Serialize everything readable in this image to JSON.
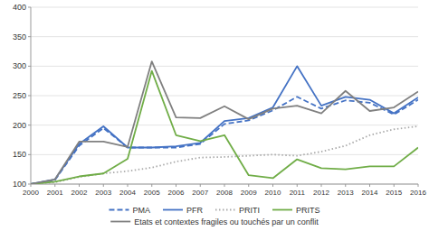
{
  "chart_data": {
    "type": "line",
    "x": [
      2000,
      2001,
      2002,
      2003,
      2004,
      2005,
      2006,
      2007,
      2008,
      2009,
      2010,
      2011,
      2012,
      2013,
      2014,
      2015,
      2016
    ],
    "xlim": [
      2000,
      2016
    ],
    "xticks": [
      2000,
      2001,
      2002,
      2003,
      2004,
      2005,
      2006,
      2007,
      2008,
      2009,
      2010,
      2011,
      2012,
      2013,
      2014,
      2015,
      2016
    ],
    "ylim": [
      100,
      400
    ],
    "yticks": [
      100,
      150,
      200,
      250,
      300,
      350,
      400
    ],
    "grid": true,
    "legend": "bottom",
    "series": [
      {
        "name": "PMA",
        "color": "#4472c4",
        "line_style": "dashed",
        "values": [
          100,
          107,
          165,
          195,
          162,
          162,
          162,
          168,
          202,
          208,
          225,
          248,
          228,
          242,
          238,
          218,
          243
        ]
      },
      {
        "name": "PFR",
        "color": "#4472c4",
        "line_style": "solid",
        "values": [
          100,
          108,
          168,
          198,
          162,
          162,
          164,
          170,
          207,
          212,
          230,
          300,
          233,
          248,
          243,
          220,
          247
        ]
      },
      {
        "name": "PRITI",
        "color": "#aaaaaa",
        "line_style": "dotted",
        "values": [
          100,
          103,
          112,
          118,
          122,
          128,
          138,
          145,
          146,
          148,
          150,
          148,
          155,
          165,
          183,
          193,
          198
        ]
      },
      {
        "name": "PRITS",
        "color": "#70ad47",
        "line_style": "solid",
        "values": [
          100,
          104,
          113,
          118,
          143,
          292,
          183,
          173,
          183,
          115,
          110,
          142,
          127,
          125,
          130,
          130,
          162
        ]
      },
      {
        "name": "Etats et contextes fragiles ou touchés par un conflit",
        "color": "#808080",
        "line_style": "solid",
        "values": [
          100,
          108,
          172,
          172,
          163,
          308,
          213,
          212,
          232,
          210,
          228,
          233,
          220,
          258,
          224,
          230,
          257
        ]
      }
    ]
  }
}
